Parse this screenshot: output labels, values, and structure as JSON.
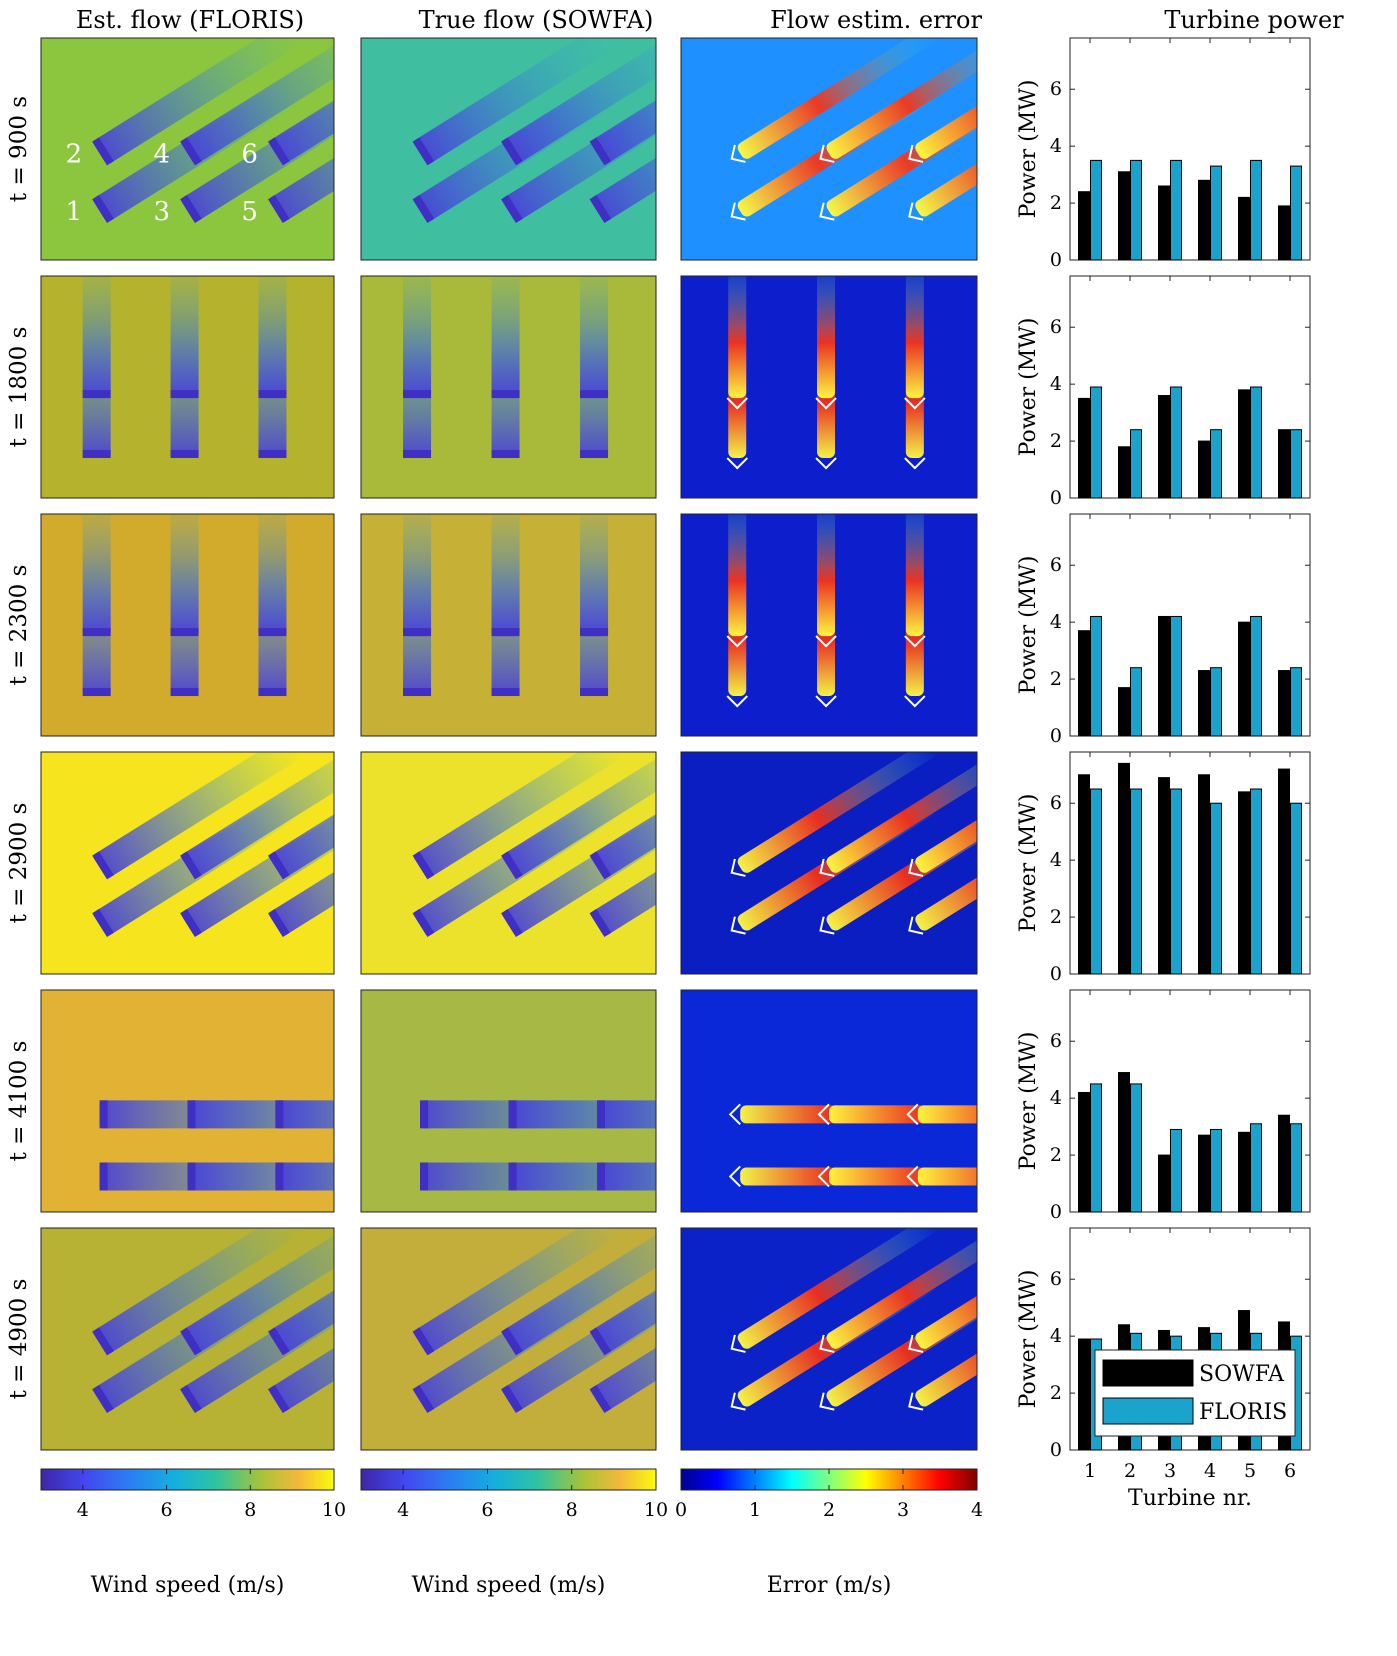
{
  "column_titles": [
    "Est. flow (FLORIS)",
    "True flow (SOWFA)",
    "Flow estim. error",
    "Turbine power"
  ],
  "row_labels": [
    "t = 900 s",
    "t = 1800 s",
    "t = 2300 s",
    "t = 2900 s",
    "t = 4100 s",
    "t = 4900 s"
  ],
  "turbine_labels": [
    "1",
    "2",
    "3",
    "4",
    "5",
    "6"
  ],
  "colorbars": [
    {
      "label": "Wind speed (m/s)",
      "ticks": [
        "4",
        "6",
        "8",
        "10"
      ],
      "range": [
        3,
        10
      ],
      "colormap": "parula"
    },
    {
      "label": "Wind speed (m/s)",
      "ticks": [
        "4",
        "6",
        "8",
        "10"
      ],
      "range": [
        3,
        10
      ],
      "colormap": "parula"
    },
    {
      "label": "Error (m/s)",
      "ticks": [
        "0",
        "1",
        "2",
        "3",
        "4"
      ],
      "range": [
        0,
        4
      ],
      "colormap": "jet"
    }
  ],
  "colors": {
    "sowfa": "#000000",
    "floris": "#1aa3cc",
    "parula_low": "#3e26a8",
    "parula_high": "#f9fb0e",
    "jet_low": "#00008f",
    "jet_high": "#800000"
  },
  "chart_data": {
    "type": "bar",
    "xlabel": "Turbine nr.",
    "ylabel": "Power (MW)",
    "categories": [
      "1",
      "2",
      "3",
      "4",
      "5",
      "6"
    ],
    "ylim": [
      0,
      7.8
    ],
    "yticks": [
      "0",
      "2",
      "4",
      "6"
    ],
    "legend": {
      "placement": "bottom-right",
      "entries": [
        "SOWFA",
        "FLORIS"
      ]
    },
    "panels": [
      {
        "row": "t = 900 s",
        "series": [
          {
            "name": "SOWFA",
            "values": [
              2.4,
              3.1,
              2.6,
              2.8,
              2.2,
              1.9
            ]
          },
          {
            "name": "FLORIS",
            "values": [
              3.5,
              3.5,
              3.5,
              3.3,
              3.5,
              3.3
            ]
          }
        ]
      },
      {
        "row": "t = 1800 s",
        "series": [
          {
            "name": "SOWFA",
            "values": [
              3.5,
              1.8,
              3.6,
              2.0,
              3.8,
              2.4
            ]
          },
          {
            "name": "FLORIS",
            "values": [
              3.9,
              2.4,
              3.9,
              2.4,
              3.9,
              2.4
            ]
          }
        ]
      },
      {
        "row": "t = 2300 s",
        "series": [
          {
            "name": "SOWFA",
            "values": [
              3.7,
              1.7,
              4.2,
              2.3,
              4.0,
              2.3
            ]
          },
          {
            "name": "FLORIS",
            "values": [
              4.2,
              2.4,
              4.2,
              2.4,
              4.2,
              2.4
            ]
          }
        ]
      },
      {
        "row": "t = 2900 s",
        "series": [
          {
            "name": "SOWFA",
            "values": [
              7.0,
              7.4,
              6.9,
              7.0,
              6.4,
              7.2
            ]
          },
          {
            "name": "FLORIS",
            "values": [
              6.5,
              6.5,
              6.5,
              6.0,
              6.5,
              6.0
            ]
          }
        ]
      },
      {
        "row": "t = 4100 s",
        "series": [
          {
            "name": "SOWFA",
            "values": [
              4.2,
              4.9,
              2.0,
              2.7,
              2.8,
              3.4
            ]
          },
          {
            "name": "FLORIS",
            "values": [
              4.5,
              4.5,
              2.9,
              2.9,
              3.1,
              3.1
            ]
          }
        ]
      },
      {
        "row": "t = 4900 s",
        "series": [
          {
            "name": "SOWFA",
            "values": [
              3.9,
              4.4,
              4.2,
              4.3,
              4.9,
              4.5
            ]
          },
          {
            "name": "FLORIS",
            "values": [
              3.9,
              4.1,
              4.0,
              4.1,
              4.1,
              4.0
            ]
          }
        ]
      }
    ],
    "field_maps": [
      {
        "row": "t = 900 s",
        "wind_direction": "diagonal",
        "floris_background": "#8cc63f",
        "sowfa_background": "#3fbfa0",
        "error_background": "#1e90ff"
      },
      {
        "row": "t = 1800 s",
        "wind_direction": "vertical",
        "floris_background": "#b5b32e",
        "sowfa_background": "#a9ba3a",
        "error_background": "#0d1fcc"
      },
      {
        "row": "t = 2300 s",
        "wind_direction": "vertical",
        "floris_background": "#d2aa2c",
        "sowfa_background": "#c7b036",
        "error_background": "#0d1fcc"
      },
      {
        "row": "t = 2900 s",
        "wind_direction": "diagonal",
        "floris_background": "#f6e41e",
        "sowfa_background": "#ede22b",
        "error_background": "#0a1ec2"
      },
      {
        "row": "t = 4100 s",
        "wind_direction": "horizontal",
        "floris_background": "#e1b233",
        "sowfa_background": "#a7b845",
        "error_background": "#0a28d8"
      },
      {
        "row": "t = 4900 s",
        "wind_direction": "diagonal",
        "floris_background": "#b7b134",
        "sowfa_background": "#c3ae3b",
        "error_background": "#0a22c8"
      }
    ]
  }
}
